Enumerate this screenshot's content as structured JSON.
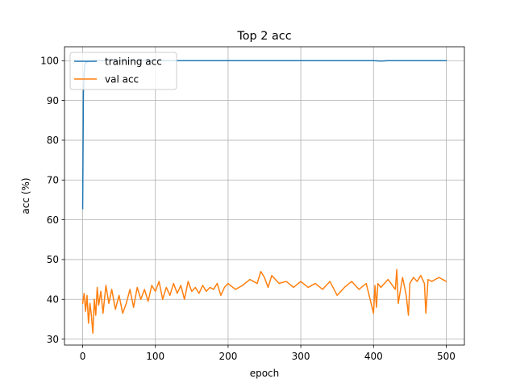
{
  "chart_data": {
    "type": "line",
    "title": "Top 2 acc",
    "xlabel": "epoch",
    "ylabel": "acc (%)",
    "xlim": [
      -25,
      525
    ],
    "ylim": [
      28.5,
      103.5
    ],
    "xticks": [
      0,
      100,
      200,
      300,
      400,
      500
    ],
    "yticks": [
      30,
      40,
      50,
      60,
      70,
      80,
      90,
      100
    ],
    "grid": true,
    "legend_position": "upper left",
    "series": [
      {
        "name": "training acc",
        "color": "#1f77b4",
        "x": [
          0,
          1,
          2,
          3,
          5,
          10,
          20,
          50,
          100,
          130,
          200,
          300,
          350,
          400,
          410,
          420,
          450,
          500
        ],
        "y": [
          62.8,
          92.0,
          97.0,
          99.0,
          99.6,
          99.9,
          100.0,
          100.0,
          100.0,
          100.0,
          100.0,
          100.0,
          100.0,
          100.0,
          99.9,
          100.0,
          100.0,
          100.0
        ]
      },
      {
        "name": "val acc",
        "color": "#ff7f0e",
        "x": [
          0,
          2,
          4,
          6,
          8,
          10,
          12,
          14,
          16,
          18,
          20,
          22,
          25,
          28,
          32,
          36,
          40,
          45,
          50,
          55,
          60,
          65,
          70,
          75,
          80,
          85,
          90,
          95,
          100,
          105,
          110,
          115,
          120,
          125,
          130,
          135,
          140,
          145,
          150,
          155,
          160,
          165,
          170,
          175,
          180,
          185,
          190,
          195,
          200,
          210,
          220,
          230,
          240,
          245,
          250,
          255,
          260,
          270,
          280,
          290,
          300,
          310,
          320,
          330,
          340,
          350,
          360,
          370,
          380,
          390,
          400,
          402,
          404,
          406,
          410,
          420,
          430,
          432,
          434,
          440,
          445,
          448,
          450,
          455,
          460,
          465,
          470,
          472,
          475,
          480,
          490,
          500
        ],
        "y": [
          39.0,
          41.5,
          37.0,
          41.0,
          34.0,
          39.0,
          36.0,
          31.5,
          40.0,
          36.0,
          43.0,
          38.5,
          42.0,
          36.5,
          43.5,
          39.0,
          42.5,
          37.5,
          41.0,
          36.5,
          39.0,
          42.5,
          38.0,
          43.0,
          40.0,
          42.5,
          39.5,
          43.5,
          42.0,
          44.5,
          40.0,
          43.0,
          41.0,
          44.0,
          41.5,
          43.5,
          40.0,
          44.5,
          42.0,
          43.0,
          41.5,
          43.5,
          42.0,
          43.0,
          42.5,
          44.0,
          41.0,
          43.0,
          44.0,
          42.5,
          43.5,
          45.0,
          44.0,
          47.0,
          45.5,
          43.0,
          46.0,
          44.0,
          44.5,
          43.0,
          44.5,
          43.0,
          44.0,
          42.5,
          44.5,
          41.0,
          43.0,
          44.5,
          42.5,
          44.0,
          36.5,
          43.5,
          38.0,
          44.0,
          43.0,
          45.0,
          42.5,
          47.5,
          39.0,
          45.5,
          41.0,
          36.0,
          44.0,
          45.5,
          44.5,
          46.0,
          44.0,
          36.5,
          45.0,
          44.5,
          45.5,
          44.5
        ]
      }
    ]
  }
}
